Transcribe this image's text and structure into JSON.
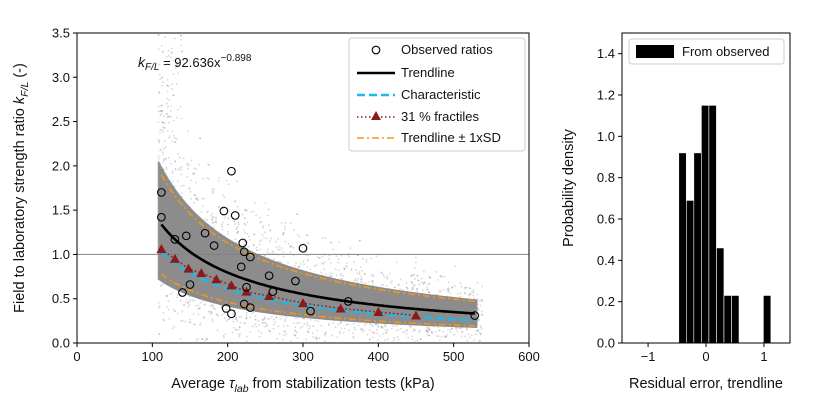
{
  "chart_data": [
    {
      "type": "scatter",
      "id": "left",
      "xlabel_parts": {
        "pre": "Average ",
        "sym": "τ",
        "sub": "lab",
        "post": " from stabilization tests (kPa)"
      },
      "ylabel_parts": {
        "pre": "Field to laboratory strength ratio ",
        "sym": "k",
        "sub": "F/L",
        "post": " (-)"
      },
      "xlim": [
        0,
        600
      ],
      "ylim": [
        0,
        3.5
      ],
      "xticks": [
        0,
        100,
        200,
        300,
        400,
        500,
        600
      ],
      "yticks": [
        0.0,
        0.5,
        1.0,
        1.5,
        2.0,
        2.5,
        3.0,
        3.5
      ],
      "reference_line_y": 1.0,
      "equation": {
        "sym": "k",
        "sub": "F/L",
        "mid": " = 92.636x",
        "exp": "−0.898"
      },
      "trendline": {
        "a": 92.636,
        "b": -0.898,
        "x_range": [
          112,
          528
        ]
      },
      "sd_band": {
        "upper_factor": 1.42,
        "lower_factor": 0.58
      },
      "characteristic": {
        "factor": 0.77,
        "x_range": [
          112,
          528
        ]
      },
      "colors": {
        "cloud": "#8c8c8c",
        "observed": "#000000",
        "trendline": "#000000",
        "characteristic": "#1fb8e8",
        "fractiles": "#8b1a1a",
        "sd": "#f0961c",
        "reference": "#808080"
      },
      "legend": [
        "Observed ratios",
        "Trendline",
        "Characteristic",
        "31 % fractiles",
        "Trendline ± 1xSD"
      ],
      "observed": [
        {
          "x": 112,
          "y": 1.7
        },
        {
          "x": 112,
          "y": 1.42
        },
        {
          "x": 130,
          "y": 1.17
        },
        {
          "x": 140,
          "y": 0.57
        },
        {
          "x": 145,
          "y": 1.21
        },
        {
          "x": 150,
          "y": 0.66
        },
        {
          "x": 170,
          "y": 1.24
        },
        {
          "x": 182,
          "y": 1.1
        },
        {
          "x": 195,
          "y": 1.49
        },
        {
          "x": 198,
          "y": 0.39
        },
        {
          "x": 205,
          "y": 1.94
        },
        {
          "x": 205,
          "y": 0.33
        },
        {
          "x": 210,
          "y": 1.44
        },
        {
          "x": 218,
          "y": 0.86
        },
        {
          "x": 220,
          "y": 1.13
        },
        {
          "x": 222,
          "y": 1.03
        },
        {
          "x": 222,
          "y": 0.44
        },
        {
          "x": 225,
          "y": 0.63
        },
        {
          "x": 230,
          "y": 0.97
        },
        {
          "x": 230,
          "y": 0.4
        },
        {
          "x": 255,
          "y": 0.76
        },
        {
          "x": 260,
          "y": 0.58
        },
        {
          "x": 290,
          "y": 0.7
        },
        {
          "x": 300,
          "y": 1.07
        },
        {
          "x": 310,
          "y": 0.36
        },
        {
          "x": 360,
          "y": 0.47
        },
        {
          "x": 528,
          "y": 0.31
        }
      ],
      "fractiles": [
        {
          "x": 112,
          "y": 1.06
        },
        {
          "x": 130,
          "y": 0.95
        },
        {
          "x": 148,
          "y": 0.84
        },
        {
          "x": 165,
          "y": 0.79
        },
        {
          "x": 185,
          "y": 0.72
        },
        {
          "x": 205,
          "y": 0.65
        },
        {
          "x": 225,
          "y": 0.58
        },
        {
          "x": 255,
          "y": 0.53
        },
        {
          "x": 300,
          "y": 0.45
        },
        {
          "x": 350,
          "y": 0.39
        },
        {
          "x": 400,
          "y": 0.35
        },
        {
          "x": 450,
          "y": 0.31
        }
      ]
    },
    {
      "type": "bar",
      "id": "right",
      "xlabel": "Residual error, trendline",
      "ylabel": "Probability density",
      "xlim": [
        -1.45,
        1.45
      ],
      "ylim": [
        0,
        1.5
      ],
      "xticks": [
        -1,
        0,
        1
      ],
      "xtick_labels": [
        "−1",
        "0",
        "1"
      ],
      "yticks": [
        0.0,
        0.2,
        0.4,
        0.6,
        0.8,
        1.0,
        1.2,
        1.4
      ],
      "bar_color": "#000000",
      "legend": [
        "From observed"
      ],
      "bins": [
        {
          "x0": -0.47,
          "x1": -0.34,
          "value": 0.92
        },
        {
          "x0": -0.34,
          "x1": -0.21,
          "value": 0.69
        },
        {
          "x0": -0.21,
          "x1": -0.08,
          "value": 0.92
        },
        {
          "x0": -0.08,
          "x1": 0.05,
          "value": 1.15
        },
        {
          "x0": 0.05,
          "x1": 0.18,
          "value": 1.15
        },
        {
          "x0": 0.18,
          "x1": 0.31,
          "value": 0.46
        },
        {
          "x0": 0.31,
          "x1": 0.44,
          "value": 0.23
        },
        {
          "x0": 0.44,
          "x1": 0.57,
          "value": 0.23
        },
        {
          "x0": 0.57,
          "x1": 0.7,
          "value": 0.0
        },
        {
          "x0": 0.7,
          "x1": 0.83,
          "value": 0.0
        },
        {
          "x0": 0.99,
          "x1": 1.12,
          "value": 0.23
        }
      ]
    }
  ]
}
